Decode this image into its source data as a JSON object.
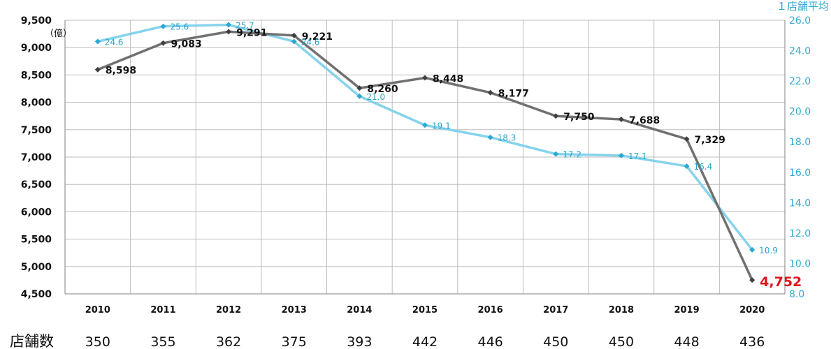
{
  "chart_data": {
    "type": "line",
    "x": [
      "2010",
      "2011",
      "2012",
      "2013",
      "2014",
      "2015",
      "2016",
      "2017",
      "2018",
      "2019",
      "2020"
    ],
    "series": [
      {
        "axis": "left",
        "color": "#707070",
        "values": [
          8598,
          9083,
          9291,
          9221,
          8260,
          8448,
          8177,
          7750,
          7688,
          7329,
          4752
        ],
        "labels": [
          "8,598",
          "9,083",
          "9,291",
          "9,221",
          "8,260",
          "8,448",
          "8,177",
          "7,750",
          "7,688",
          "7,329",
          "4,752"
        ],
        "highlight_color": "#e0141c"
      },
      {
        "name": "1店舗平均",
        "axis": "right",
        "color": "#86d3ec",
        "values": [
          24.6,
          25.6,
          25.7,
          24.6,
          21.0,
          19.1,
          18.3,
          17.2,
          17.1,
          16.4,
          10.9
        ],
        "labels": [
          "24.6",
          "25.6",
          "25.7",
          "24.6",
          "21.0",
          "19.1",
          "18.3",
          "17.2",
          "17.1",
          "16.4",
          "10.9"
        ]
      }
    ],
    "left_axis": {
      "unit": "（億）",
      "ylim": [
        4500,
        9500
      ],
      "ticks": [
        "4,500",
        "5,000",
        "5,500",
        "6,000",
        "6,500",
        "7,000",
        "7,500",
        "8,000",
        "8,500",
        "9,000",
        "9,500"
      ]
    },
    "right_axis": {
      "unit": "１店舗平均",
      "ylim": [
        8,
        26
      ],
      "ticks": [
        "8.0",
        "10.0",
        "12.0",
        "14.0",
        "16.0",
        "18.0",
        "20.0",
        "22.0",
        "24.0",
        "26.0"
      ]
    },
    "grid": true,
    "store_count": {
      "label": "店舗数",
      "values": [
        "350",
        "355",
        "362",
        "375",
        "393",
        "442",
        "446",
        "450",
        "450",
        "448",
        "436"
      ]
    }
  }
}
